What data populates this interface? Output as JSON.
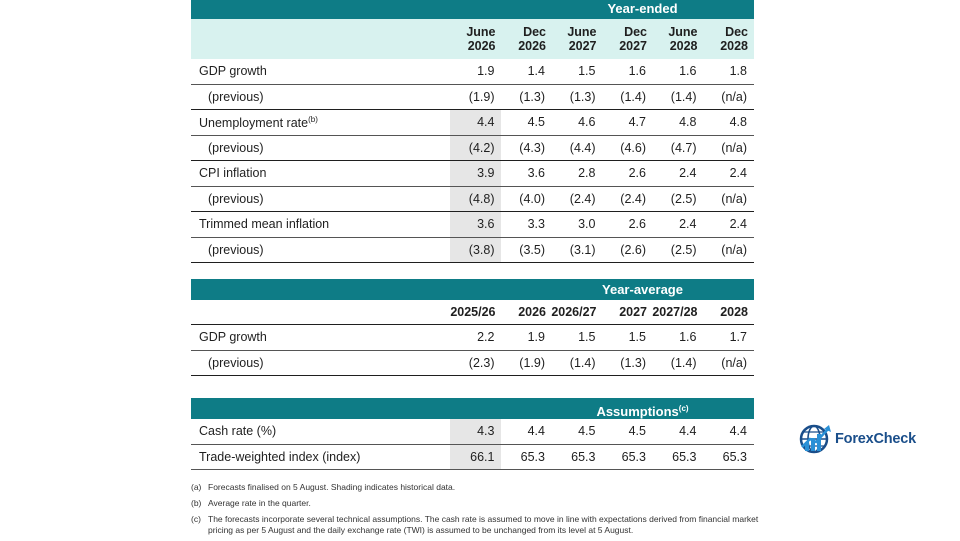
{
  "year_ended": {
    "title": "Year-ended",
    "columns": [
      {
        "line1": "June",
        "line2": "2026"
      },
      {
        "line1": "Dec",
        "line2": "2026"
      },
      {
        "line1": "June",
        "line2": "2027"
      },
      {
        "line1": "Dec",
        "line2": "2027"
      },
      {
        "line1": "June",
        "line2": "2028"
      },
      {
        "line1": "Dec",
        "line2": "2028"
      }
    ],
    "rows": [
      {
        "label": "GDP growth",
        "sup": "",
        "values": [
          "1.9",
          "1.4",
          "1.5",
          "1.6",
          "1.6",
          "1.8"
        ],
        "shaded": 0
      },
      {
        "label": "(previous)",
        "sup": "",
        "values": [
          "(1.9)",
          "(1.3)",
          "(1.3)",
          "(1.4)",
          "(1.4)",
          "(n/a)"
        ],
        "shaded": 0,
        "previous": true
      },
      {
        "label": "Unemployment rate",
        "sup": "(b)",
        "values": [
          "4.4",
          "4.5",
          "4.6",
          "4.7",
          "4.8",
          "4.8"
        ],
        "shaded": 1
      },
      {
        "label": "(previous)",
        "sup": "",
        "values": [
          "(4.2)",
          "(4.3)",
          "(4.4)",
          "(4.6)",
          "(4.7)",
          "(n/a)"
        ],
        "shaded": 1,
        "previous": true
      },
      {
        "label": "CPI inflation",
        "sup": "",
        "values": [
          "3.9",
          "3.6",
          "2.8",
          "2.6",
          "2.4",
          "2.4"
        ],
        "shaded": 1
      },
      {
        "label": "(previous)",
        "sup": "",
        "values": [
          "(4.8)",
          "(4.0)",
          "(2.4)",
          "(2.4)",
          "(2.5)",
          "(n/a)"
        ],
        "shaded": 1,
        "previous": true
      },
      {
        "label": "Trimmed mean inflation",
        "sup": "",
        "values": [
          "3.6",
          "3.3",
          "3.0",
          "2.6",
          "2.4",
          "2.4"
        ],
        "shaded": 1
      },
      {
        "label": "(previous)",
        "sup": "",
        "values": [
          "(3.8)",
          "(3.5)",
          "(3.1)",
          "(2.6)",
          "(2.5)",
          "(n/a)"
        ],
        "shaded": 1,
        "previous": true
      }
    ]
  },
  "year_average": {
    "title": "Year-average",
    "columns": [
      "2025/26",
      "2026",
      "2026/27",
      "2027",
      "2027/28",
      "2028"
    ],
    "rows": [
      {
        "label": "GDP growth",
        "values": [
          "2.2",
          "1.9",
          "1.5",
          "1.5",
          "1.6",
          "1.7"
        ]
      },
      {
        "label": "(previous)",
        "values": [
          "(2.3)",
          "(1.9)",
          "(1.4)",
          "(1.3)",
          "(1.4)",
          "(n/a)"
        ],
        "previous": true
      }
    ]
  },
  "assumptions": {
    "title": "Assumptions",
    "sup": "(c)",
    "rows": [
      {
        "label": "Cash rate (%)",
        "values": [
          "4.3",
          "4.4",
          "4.5",
          "4.5",
          "4.4",
          "4.4"
        ],
        "shaded": 1
      },
      {
        "label": "Trade-weighted index (index)",
        "values": [
          "66.1",
          "65.3",
          "65.3",
          "65.3",
          "65.3",
          "65.3"
        ],
        "shaded": 1
      }
    ]
  },
  "notes": [
    {
      "tag": "(a)",
      "text": "Forecasts finalised on 5 August. Shading indicates historical data."
    },
    {
      "tag": "(b)",
      "text": "Average rate in the quarter."
    },
    {
      "tag": "(c)",
      "text": "The forecasts incorporate several technical assumptions. The cash rate is assumed to move in line with expectations derived from financial market pricing as per 5 August and the daily exchange rate (TWI) is assumed to be unchanged from its level at 5 August."
    }
  ],
  "logo": {
    "text_before": "Forex",
    "text_x": "",
    "text_after": "Check"
  },
  "colors": {
    "header_teal": "#0e7c86",
    "subheader_mint": "#d8f2ef",
    "shading_grey": "#e6e6e6",
    "logo_blue": "#1a4e8a"
  }
}
